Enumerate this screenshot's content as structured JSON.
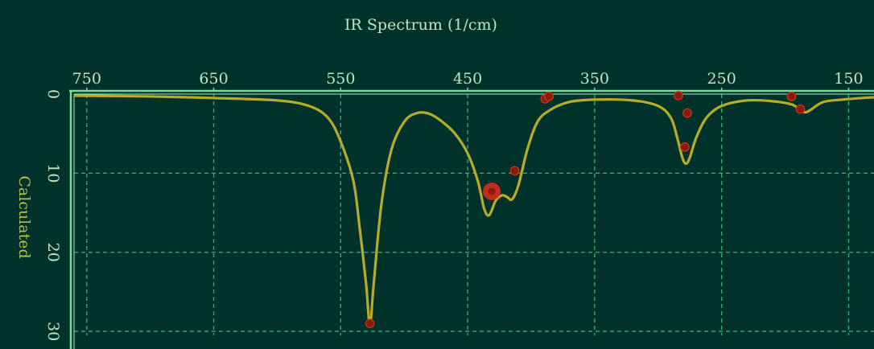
{
  "chart_data": {
    "type": "line",
    "title": "IR Spectrum (1/cm)",
    "xlabel": "",
    "ylabel": "Calculated",
    "xlim": [
      760,
      130
    ],
    "ylim": [
      0,
      30.5
    ],
    "x_ticks": [
      "750",
      "650",
      "550",
      "450",
      "350",
      "250",
      "150"
    ],
    "y_ticks": [
      "0",
      "10",
      "20",
      "30"
    ],
    "grid": true,
    "series": [
      {
        "type": "line",
        "color": "#b5ad2a",
        "points": [
          [
            760,
            0.2
          ],
          [
            700,
            0.3
          ],
          [
            650,
            0.5
          ],
          [
            600,
            0.8
          ],
          [
            575,
            1.5
          ],
          [
            560,
            3.0
          ],
          [
            550,
            6.0
          ],
          [
            540,
            11.0
          ],
          [
            535,
            17.0
          ],
          [
            530,
            24.0
          ],
          [
            527,
            29.2
          ],
          [
            524,
            24.0
          ],
          [
            518,
            14.0
          ],
          [
            510,
            7.0
          ],
          [
            500,
            3.5
          ],
          [
            490,
            2.4
          ],
          [
            480,
            2.5
          ],
          [
            470,
            3.5
          ],
          [
            460,
            5.0
          ],
          [
            450,
            7.5
          ],
          [
            442,
            11.0
          ],
          [
            437,
            14.5
          ],
          [
            433,
            15.3
          ],
          [
            428,
            13.5
          ],
          [
            423,
            12.8
          ],
          [
            419,
            13.0
          ],
          [
            415,
            13.3
          ],
          [
            410,
            11.5
          ],
          [
            403,
            7.0
          ],
          [
            395,
            3.5
          ],
          [
            385,
            2.0
          ],
          [
            370,
            1.0
          ],
          [
            350,
            0.7
          ],
          [
            320,
            0.8
          ],
          [
            300,
            1.5
          ],
          [
            290,
            3.0
          ],
          [
            285,
            5.5
          ],
          [
            281,
            8.0
          ],
          [
            278,
            8.8
          ],
          [
            275,
            8.0
          ],
          [
            270,
            5.5
          ],
          [
            262,
            3.0
          ],
          [
            250,
            1.5
          ],
          [
            230,
            0.8
          ],
          [
            210,
            0.9
          ],
          [
            195,
            1.3
          ],
          [
            188,
            2.0
          ],
          [
            184,
            2.3
          ],
          [
            180,
            2.0
          ],
          [
            170,
            1.0
          ],
          [
            155,
            0.7
          ],
          [
            140,
            0.5
          ],
          [
            130,
            0.4
          ]
        ]
      }
    ],
    "markers": {
      "color": "#8b1c0c",
      "points": [
        [
          527,
          29.0
        ],
        [
          431,
          12.3
        ],
        [
          413,
          9.7
        ],
        [
          389,
          0.6
        ],
        [
          386,
          0.3
        ],
        [
          284,
          0.2
        ],
        [
          277,
          2.4
        ],
        [
          279,
          6.7
        ],
        [
          195,
          0.3
        ],
        [
          188,
          1.9
        ]
      ],
      "highlighted": [
        431,
        12.3
      ],
      "highlight_color": "#e52a1e"
    },
    "colors": {
      "background": "#00312a",
      "axis": "#7dd89a",
      "grid": "#2fb37a",
      "text": "#bfe6bf",
      "ylabel": "#b9c24a"
    }
  }
}
